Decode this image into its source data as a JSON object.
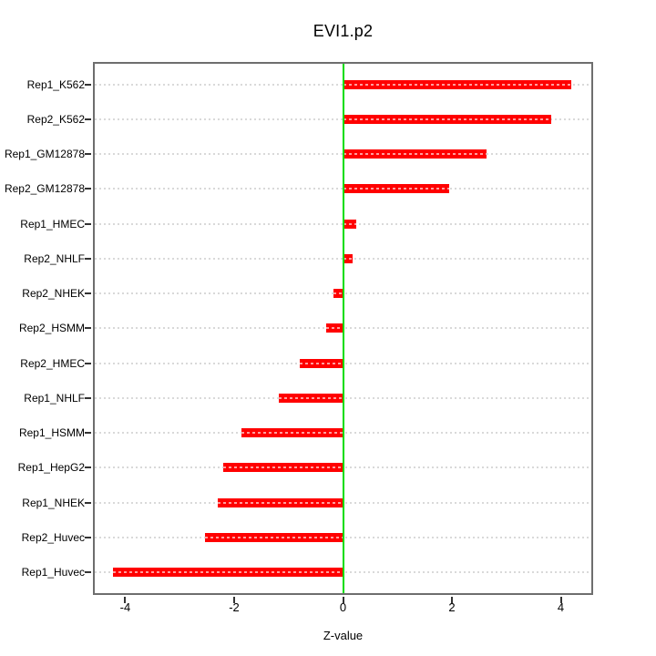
{
  "title": "EVI1.p2",
  "chart_data": {
    "type": "bar",
    "orientation": "horizontal",
    "title": "EVI1.p2",
    "xlabel": "Z-value",
    "ylabel": "",
    "categories": [
      "Rep1_K562",
      "Rep2_K562",
      "Rep1_GM12878",
      "Rep2_GM12878",
      "Rep1_HMEC",
      "Rep2_NHLF",
      "Rep2_NHEK",
      "Rep2_HSMM",
      "Rep2_HMEC",
      "Rep1_NHLF",
      "Rep1_HSMM",
      "Rep1_HepG2",
      "Rep1_NHEK",
      "Rep2_Huvec",
      "Rep1_Huvec"
    ],
    "values": [
      4.2,
      3.82,
      2.63,
      1.95,
      0.24,
      0.17,
      -0.17,
      -0.31,
      -0.8,
      -1.18,
      -1.86,
      -2.2,
      -2.3,
      -2.54,
      -4.23
    ],
    "xlim": [
      -4.56,
      4.56
    ],
    "xticks": [
      -4,
      -2,
      0,
      2,
      4
    ],
    "grid": "horizontal-dotted-per-category",
    "zero_line_x": 0,
    "legend": "none",
    "colors": {
      "bar": "#ff0000",
      "zero_line": "#00dd00",
      "grid": "#d9d9d9",
      "frame": "#6e6e6e",
      "text": "#000000",
      "background": "#ffffff"
    }
  }
}
